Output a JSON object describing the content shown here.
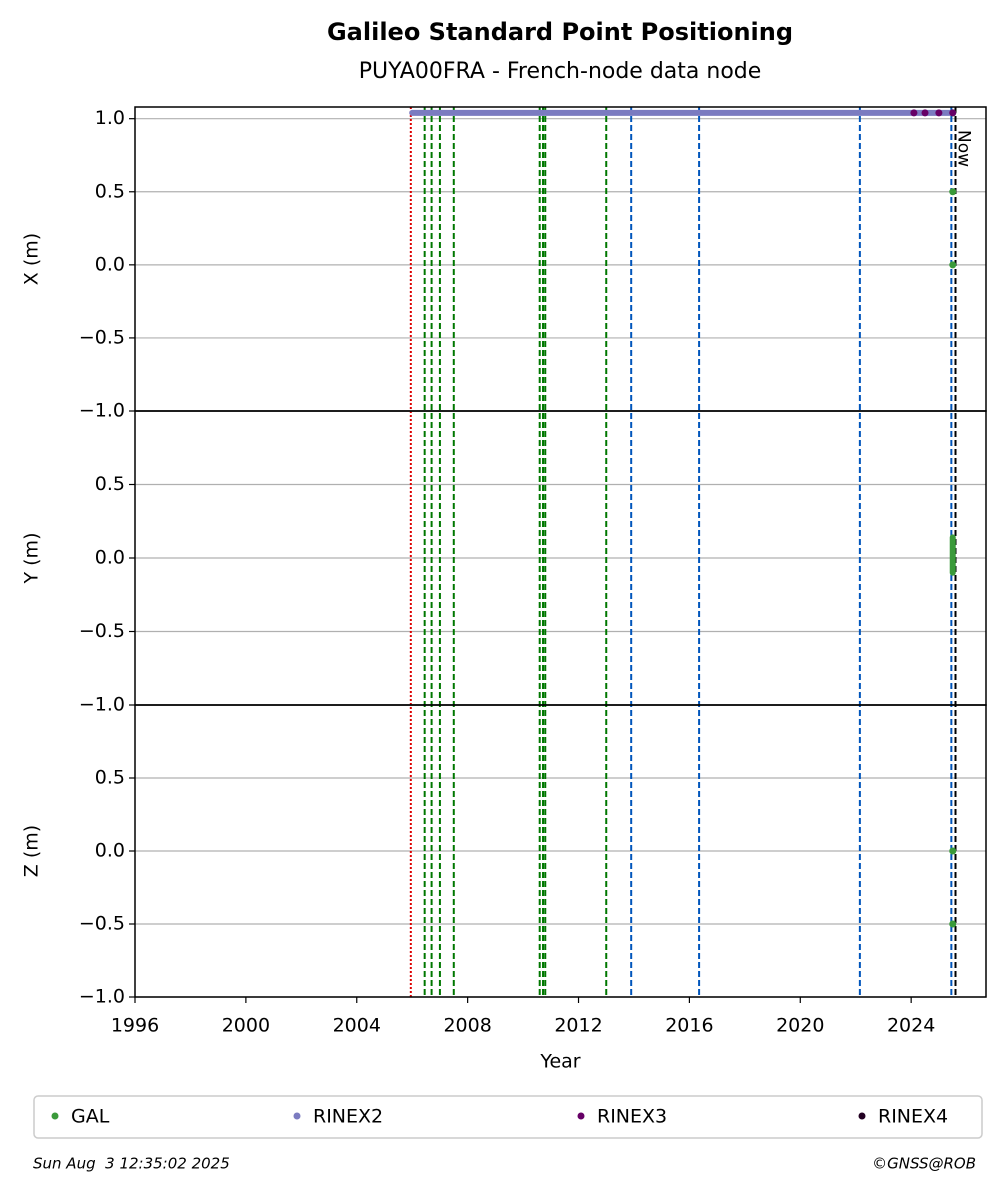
{
  "chart_data": [
    {
      "type": "scatter",
      "title": "Galileo Standard Point Positioning",
      "subtitle": "PUYA00FRA - French-node data node",
      "ylabel": "X (m)",
      "ylim": [
        -1,
        1.08
      ],
      "yticks": [
        {
          "value": -1,
          "label": "−1.0"
        },
        {
          "value": -0.5,
          "label": "−0.5"
        },
        {
          "value": 0,
          "label": "0.0"
        },
        0.5,
        {
          "value": 1,
          "label": "1.0"
        }
      ],
      "grid": true,
      "series": [
        {
          "name": "GAL",
          "color": "#3a9a3a",
          "x": [
            2025.5,
            2025.5,
            2025.5
          ],
          "values": [
            1.04,
            0.5,
            0
          ]
        },
        {
          "name": "RINEX2",
          "color": "#7b7bc0",
          "x": [
            2006,
            2007,
            2008,
            2009,
            2010,
            2011,
            2012,
            2013,
            2014,
            2015,
            2016,
            2017,
            2018,
            2019,
            2020,
            2021,
            2022,
            2023,
            2024,
            2025,
            2025.5
          ],
          "values": [
            1.04,
            1.04,
            1.04,
            1.04,
            1.04,
            1.04,
            1.04,
            1.04,
            1.04,
            1.04,
            1.04,
            1.04,
            1.04,
            1.04,
            1.04,
            1.04,
            1.04,
            1.04,
            1.04,
            1.04,
            1.04
          ]
        },
        {
          "name": "RINEX3",
          "color": "#660066",
          "x": [
            2024.1,
            2024.5,
            2025,
            2025.5
          ],
          "values": [
            1.04,
            1.04,
            1.04,
            1.04
          ]
        },
        {
          "name": "RINEX4",
          "color": "#220022",
          "x": [],
          "values": []
        }
      ]
    },
    {
      "type": "scatter",
      "ylabel": "Y (m)",
      "ylim": [
        -1,
        1
      ],
      "yticks": [
        {
          "value": -1,
          "label": "−1.0"
        },
        {
          "value": -0.5,
          "label": "−0.5"
        },
        {
          "value": 0,
          "label": "0.0"
        },
        0.5
      ],
      "grid": true,
      "series": [
        {
          "name": "GAL",
          "color": "#3a9a3a",
          "x": [
            2025.5,
            2025.5,
            2025.5,
            2025.5,
            2025.5,
            2025.5
          ],
          "values": [
            0.14,
            0.1,
            0.05,
            0,
            -0.05,
            -0.1
          ]
        }
      ]
    },
    {
      "type": "scatter",
      "ylabel": "Z (m)",
      "xlabel": "Year",
      "ylim": [
        -1,
        1
      ],
      "xlim": [
        1996,
        2026.7
      ],
      "xticks": [
        1996,
        2000,
        2004,
        2008,
        2012,
        2016,
        2020,
        2024
      ],
      "yticks": [
        {
          "value": -1,
          "label": "−1.0"
        },
        {
          "value": -0.5,
          "label": "−0.5"
        },
        {
          "value": 0,
          "label": "0.0"
        },
        0.5
      ],
      "grid": true,
      "series": [
        {
          "name": "GAL",
          "color": "#3a9a3a",
          "x": [
            2025.5,
            2025.5
          ],
          "values": [
            0,
            -0.5
          ]
        }
      ],
      "events": [
        {
          "x": 2005.95,
          "color": "#dd0000"
        },
        {
          "x": 2006.45,
          "color": "#007700"
        },
        {
          "x": 2006.7,
          "color": "#007700"
        },
        {
          "x": 2007.0,
          "color": "#007700"
        },
        {
          "x": 2007.5,
          "color": "#007700"
        },
        {
          "x": 2010.6,
          "color": "#007700"
        },
        {
          "x": 2010.72,
          "color": "#007700"
        },
        {
          "x": 2010.8,
          "color": "#007700"
        },
        {
          "x": 2013.0,
          "color": "#007700"
        },
        {
          "x": 2013.9,
          "color": "#0055bb"
        },
        {
          "x": 2016.35,
          "color": "#0055bb"
        },
        {
          "x": 2022.15,
          "color": "#0055bb"
        },
        {
          "x": 2025.45,
          "color": "#0055bb"
        },
        {
          "x": 2025.6,
          "color": "#000000",
          "label": "Now"
        }
      ]
    }
  ],
  "footer": {
    "left": "Sun Aug  3 12:35:02 2025",
    "right": "©GNSS@ROB"
  }
}
